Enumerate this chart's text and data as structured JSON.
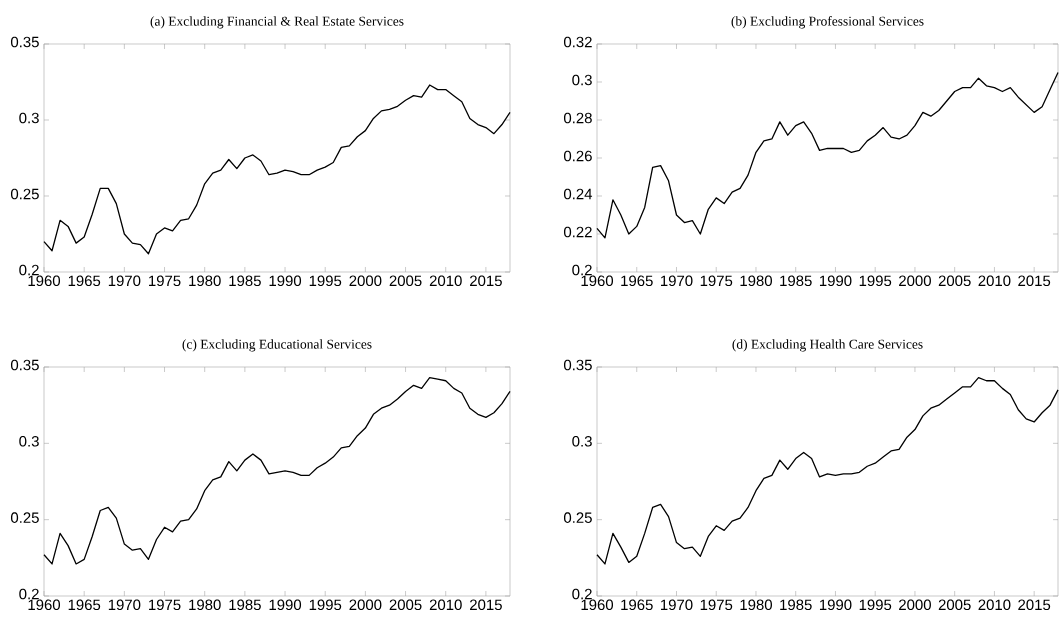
{
  "chart_data": [
    {
      "type": "line",
      "title": "(a) Excluding Financial & Real Estate Services",
      "color": "#000000",
      "xlim": [
        1960,
        2018
      ],
      "ylim": [
        0.2,
        0.35
      ],
      "xticks": [
        1960,
        1965,
        1970,
        1975,
        1980,
        1985,
        1990,
        1995,
        2000,
        2005,
        2010,
        2015
      ],
      "yticks": [
        0.2,
        0.25,
        0.3,
        0.35
      ],
      "x": [
        1960,
        1961,
        1962,
        1963,
        1964,
        1965,
        1966,
        1967,
        1968,
        1969,
        1970,
        1971,
        1972,
        1973,
        1974,
        1975,
        1976,
        1977,
        1978,
        1979,
        1980,
        1981,
        1982,
        1983,
        1984,
        1985,
        1986,
        1987,
        1988,
        1989,
        1990,
        1991,
        1992,
        1993,
        1994,
        1995,
        1996,
        1997,
        1998,
        1999,
        2000,
        2001,
        2002,
        2003,
        2004,
        2005,
        2006,
        2007,
        2008,
        2009,
        2010,
        2011,
        2012,
        2013,
        2014,
        2015,
        2016,
        2017,
        2018
      ],
      "values": [
        0.22,
        0.214,
        0.234,
        0.23,
        0.219,
        0.223,
        0.238,
        0.255,
        0.255,
        0.245,
        0.225,
        0.219,
        0.218,
        0.212,
        0.225,
        0.229,
        0.227,
        0.234,
        0.235,
        0.244,
        0.258,
        0.265,
        0.267,
        0.274,
        0.268,
        0.275,
        0.277,
        0.273,
        0.264,
        0.265,
        0.267,
        0.266,
        0.264,
        0.264,
        0.267,
        0.269,
        0.272,
        0.282,
        0.283,
        0.289,
        0.293,
        0.301,
        0.306,
        0.307,
        0.309,
        0.313,
        0.316,
        0.315,
        0.323,
        0.32,
        0.32,
        0.316,
        0.312,
        0.301,
        0.297,
        0.295,
        0.291,
        0.297,
        0.305
      ]
    },
    {
      "type": "line",
      "title": "(b) Excluding Professional Services",
      "color": "#000000",
      "xlim": [
        1960,
        2018
      ],
      "ylim": [
        0.2,
        0.32
      ],
      "xticks": [
        1960,
        1965,
        1970,
        1975,
        1980,
        1985,
        1990,
        1995,
        2000,
        2005,
        2010,
        2015
      ],
      "yticks": [
        0.2,
        0.22,
        0.24,
        0.26,
        0.28,
        0.3,
        0.32
      ],
      "x": [
        1960,
        1961,
        1962,
        1963,
        1964,
        1965,
        1966,
        1967,
        1968,
        1969,
        1970,
        1971,
        1972,
        1973,
        1974,
        1975,
        1976,
        1977,
        1978,
        1979,
        1980,
        1981,
        1982,
        1983,
        1984,
        1985,
        1986,
        1987,
        1988,
        1989,
        1990,
        1991,
        1992,
        1993,
        1994,
        1995,
        1996,
        1997,
        1998,
        1999,
        2000,
        2001,
        2002,
        2003,
        2004,
        2005,
        2006,
        2007,
        2008,
        2009,
        2010,
        2011,
        2012,
        2013,
        2014,
        2015,
        2016,
        2017,
        2018
      ],
      "values": [
        0.223,
        0.218,
        0.238,
        0.23,
        0.22,
        0.224,
        0.234,
        0.255,
        0.256,
        0.248,
        0.23,
        0.226,
        0.227,
        0.22,
        0.233,
        0.239,
        0.236,
        0.242,
        0.244,
        0.251,
        0.263,
        0.269,
        0.27,
        0.279,
        0.272,
        0.277,
        0.279,
        0.273,
        0.264,
        0.265,
        0.265,
        0.265,
        0.263,
        0.264,
        0.269,
        0.272,
        0.276,
        0.271,
        0.27,
        0.272,
        0.277,
        0.284,
        0.282,
        0.285,
        0.29,
        0.295,
        0.297,
        0.297,
        0.302,
        0.298,
        0.297,
        0.295,
        0.297,
        0.292,
        0.288,
        0.284,
        0.287,
        0.296,
        0.305
      ]
    },
    {
      "type": "line",
      "title": "(c) Excluding Educational Services",
      "color": "#000000",
      "xlim": [
        1960,
        2018
      ],
      "ylim": [
        0.2,
        0.35
      ],
      "xticks": [
        1960,
        1965,
        1970,
        1975,
        1980,
        1985,
        1990,
        1995,
        2000,
        2005,
        2010,
        2015
      ],
      "yticks": [
        0.2,
        0.25,
        0.3,
        0.35
      ],
      "x": [
        1960,
        1961,
        1962,
        1963,
        1964,
        1965,
        1966,
        1967,
        1968,
        1969,
        1970,
        1971,
        1972,
        1973,
        1974,
        1975,
        1976,
        1977,
        1978,
        1979,
        1980,
        1981,
        1982,
        1983,
        1984,
        1985,
        1986,
        1987,
        1988,
        1989,
        1990,
        1991,
        1992,
        1993,
        1994,
        1995,
        1996,
        1997,
        1998,
        1999,
        2000,
        2001,
        2002,
        2003,
        2004,
        2005,
        2006,
        2007,
        2008,
        2009,
        2010,
        2011,
        2012,
        2013,
        2014,
        2015,
        2016,
        2017,
        2018
      ],
      "values": [
        0.227,
        0.221,
        0.241,
        0.233,
        0.221,
        0.224,
        0.239,
        0.256,
        0.258,
        0.251,
        0.234,
        0.23,
        0.231,
        0.224,
        0.237,
        0.245,
        0.242,
        0.249,
        0.25,
        0.257,
        0.269,
        0.276,
        0.278,
        0.288,
        0.282,
        0.289,
        0.293,
        0.289,
        0.28,
        0.281,
        0.282,
        0.281,
        0.279,
        0.279,
        0.284,
        0.287,
        0.291,
        0.297,
        0.298,
        0.305,
        0.31,
        0.319,
        0.323,
        0.325,
        0.329,
        0.334,
        0.338,
        0.336,
        0.343,
        0.342,
        0.341,
        0.336,
        0.333,
        0.323,
        0.319,
        0.317,
        0.32,
        0.326,
        0.334
      ]
    },
    {
      "type": "line",
      "title": "(d) Excluding Health Care Services",
      "color": "#000000",
      "xlim": [
        1960,
        2018
      ],
      "ylim": [
        0.2,
        0.35
      ],
      "xticks": [
        1960,
        1965,
        1970,
        1975,
        1980,
        1985,
        1990,
        1995,
        2000,
        2005,
        2010,
        2015
      ],
      "yticks": [
        0.2,
        0.25,
        0.3,
        0.35
      ],
      "x": [
        1960,
        1961,
        1962,
        1963,
        1964,
        1965,
        1966,
        1967,
        1968,
        1969,
        1970,
        1971,
        1972,
        1973,
        1974,
        1975,
        1976,
        1977,
        1978,
        1979,
        1980,
        1981,
        1982,
        1983,
        1984,
        1985,
        1986,
        1987,
        1988,
        1989,
        1990,
        1991,
        1992,
        1993,
        1994,
        1995,
        1996,
        1997,
        1998,
        1999,
        2000,
        2001,
        2002,
        2003,
        2004,
        2005,
        2006,
        2007,
        2008,
        2009,
        2010,
        2011,
        2012,
        2013,
        2014,
        2015,
        2016,
        2017,
        2018
      ],
      "values": [
        0.227,
        0.221,
        0.241,
        0.232,
        0.222,
        0.226,
        0.241,
        0.258,
        0.26,
        0.252,
        0.235,
        0.231,
        0.232,
        0.226,
        0.239,
        0.246,
        0.243,
        0.249,
        0.251,
        0.258,
        0.269,
        0.277,
        0.279,
        0.289,
        0.283,
        0.29,
        0.294,
        0.29,
        0.278,
        0.28,
        0.279,
        0.28,
        0.28,
        0.281,
        0.285,
        0.287,
        0.291,
        0.295,
        0.296,
        0.304,
        0.309,
        0.318,
        0.323,
        0.325,
        0.329,
        0.333,
        0.337,
        0.337,
        0.343,
        0.341,
        0.341,
        0.336,
        0.332,
        0.322,
        0.316,
        0.314,
        0.32,
        0.325,
        0.335
      ]
    }
  ]
}
